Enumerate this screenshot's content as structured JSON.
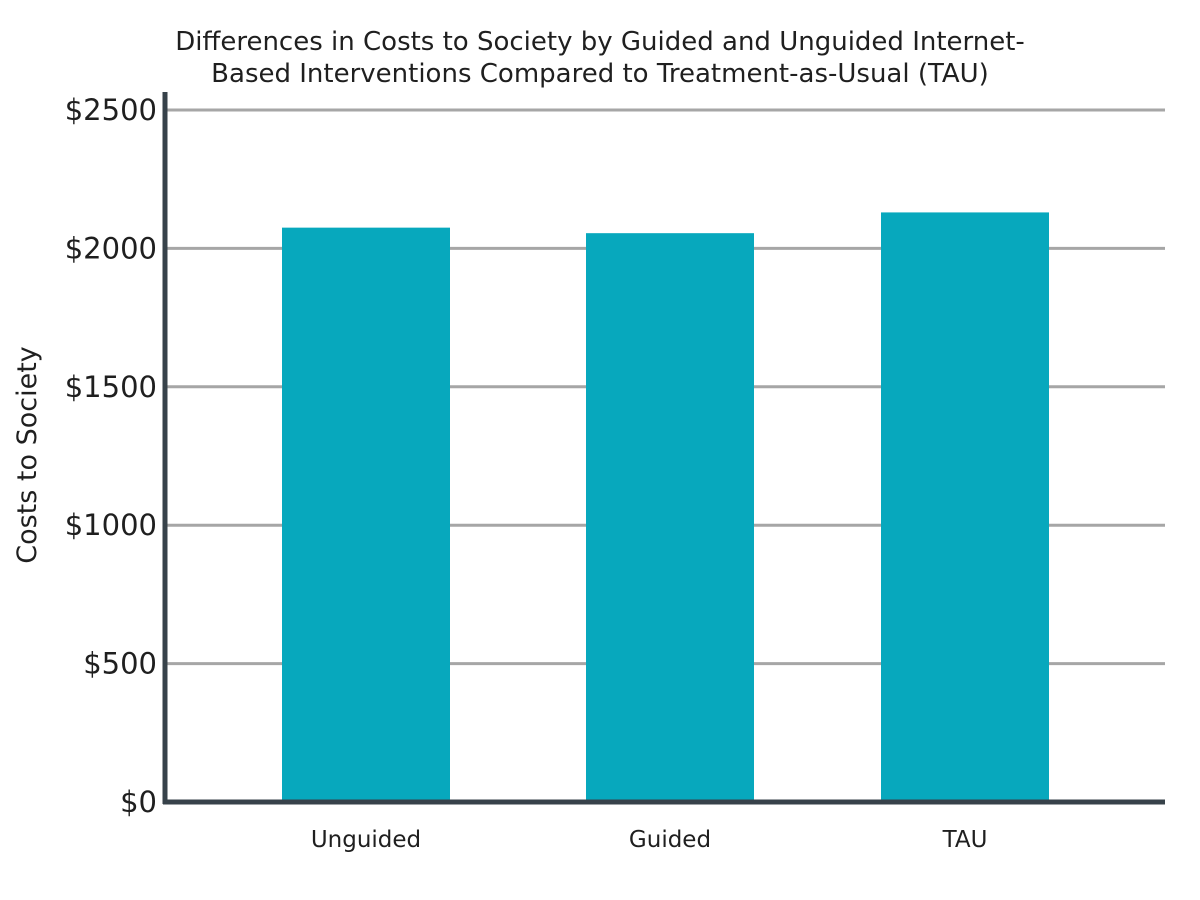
{
  "chart_data": {
    "type": "bar",
    "title_lines": [
      "Differences in Costs to Society by Guided and Unguided Internet-",
      "Based Interventions Compared to Treatment-as-Usual (TAU)"
    ],
    "xlabel": "",
    "ylabel": "Costs to Society",
    "categories": [
      "Unguided",
      "Guided",
      "TAU"
    ],
    "values": [
      2075,
      2055,
      2130
    ],
    "ylim": [
      0,
      2500
    ],
    "yticks": [
      0,
      500,
      1000,
      1500,
      2000,
      2500
    ],
    "ytick_labels": [
      "$0",
      "$500",
      "$1000",
      "$1500",
      "$2000",
      "$2500"
    ],
    "grid": "horizontal",
    "legend": "none",
    "colors": {
      "bar": "#07a8bd",
      "grid": "#a6a6a6",
      "axis": "#37424a",
      "text": "#1f1f1f"
    }
  }
}
